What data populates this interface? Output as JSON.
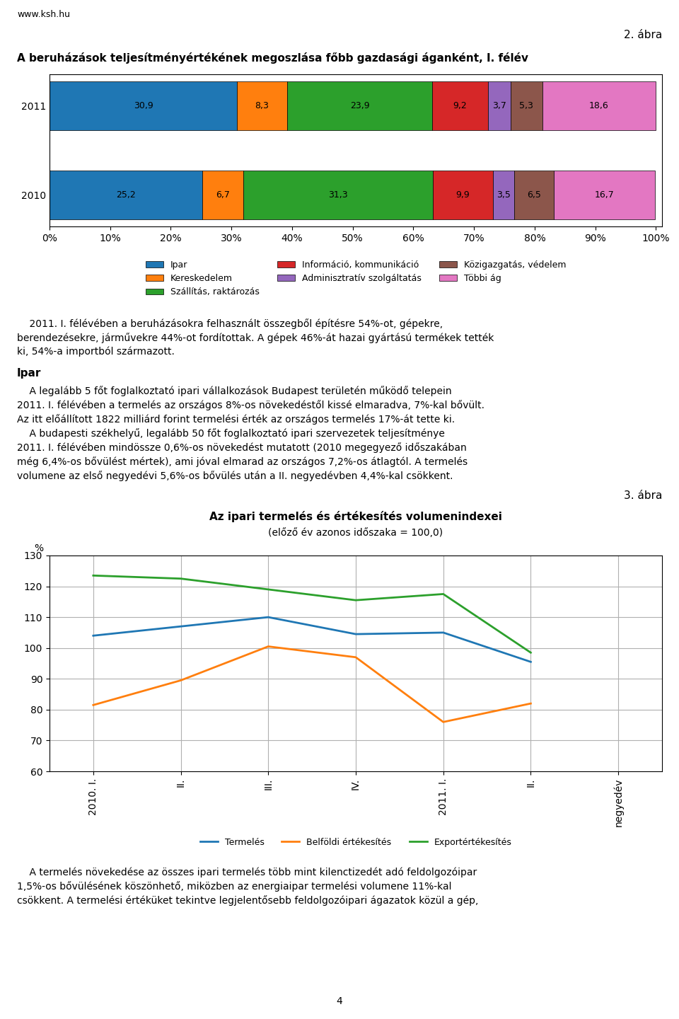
{
  "chart_data": [
    {
      "type": "bar",
      "orientation": "horizontal",
      "stacked": true,
      "title": "A beruházások teljesítményértékének megoszlása főbb gazdasági áganként, I. félév",
      "categories": [
        "2011",
        "2010"
      ],
      "series": [
        {
          "name": "Ipar",
          "values": [
            30.9,
            25.2
          ],
          "value_labels": [
            "30,9",
            "25,2"
          ]
        },
        {
          "name": "Kereskedelem",
          "values": [
            8.3,
            6.7
          ],
          "value_labels": [
            "8,3",
            "6,7"
          ]
        },
        {
          "name": "Szállítás, raktározás",
          "values": [
            23.9,
            31.3
          ],
          "value_labels": [
            "23,9",
            "31,3"
          ]
        },
        {
          "name": "Információ, kommunikáció",
          "values": [
            9.2,
            9.9
          ],
          "value_labels": [
            "9,2",
            "9,9"
          ]
        },
        {
          "name": "Adminisztratív szolgáltatás",
          "values": [
            3.7,
            3.5
          ],
          "value_labels": [
            "3,7",
            "3,5"
          ]
        },
        {
          "name": "Közigazgatás, védelem",
          "values": [
            5.3,
            6.5
          ],
          "value_labels": [
            "5,3",
            "6,5"
          ]
        },
        {
          "name": "Többi ág",
          "values": [
            18.6,
            16.7
          ],
          "value_labels": [
            "18,6",
            "16,7"
          ]
        }
      ],
      "xlim": [
        0,
        101
      ],
      "xticks": [
        {
          "value": 0,
          "label": "0%"
        },
        {
          "value": 10,
          "label": "10%"
        },
        {
          "value": 20,
          "label": "20%"
        },
        {
          "value": 30,
          "label": "30%"
        },
        {
          "value": 40,
          "label": "40%"
        },
        {
          "value": 50,
          "label": "50%"
        },
        {
          "value": 60,
          "label": "60%"
        },
        {
          "value": 70,
          "label": "70%"
        },
        {
          "value": 80,
          "label": "80%"
        },
        {
          "value": 90,
          "label": "90%"
        },
        {
          "value": 100,
          "label": "100%"
        }
      ],
      "grid": false,
      "legend": "upper center",
      "data_labels": true,
      "annotations": [
        "www.ksh.hu",
        "2. ábra",
        "    2011. I. félévében a beruházásokra felhasznált összegből építésre 54%-ot, gépekre,",
        "berendezésekre, járművekre 44%-ot fordítottak. A gépek 46%-át hazai gyártású termékek tették",
        "ki, 54%-a importból származott.",
        "Ipar",
        "    A legalább 5 főt foglalkoztató ipari vállalkozások Budapest területén működő telepein",
        "2011. I. félévében a termelés az országos 8%-os növekedéstől kissé elmaradva, 7%-kal bővült.",
        "Az itt előállított 1822 milliárd forint termelési érték az országos termelés 17%-át tette ki.",
        "    A budapesti székhelyű, legalább 50 főt foglalkoztató ipari szervezetek teljesítménye",
        "2011. I. félévében mindössze 0,6%-os növekedést mutatott (2010 megegyező időszakában",
        "még 6,4%-os bővülést mértek), ami jóval elmarad az országos 7,2%-os átlagtól. A termelés",
        "volumene az első negyedévi 5,6%-os bővülés után a II. negyedévben 4,4%-kal csökkent."
      ]
    },
    {
      "type": "line",
      "title": "Az ipari termelés és értékesítés volumenindexei",
      "subtitle": "(előző év azonos időszaka = 100,0)",
      "ylabel": "%",
      "categories": [
        "2010. I.",
        "II.",
        "III.",
        "IV.",
        "2011. I.",
        "II.",
        "negyedév"
      ],
      "series": [
        {
          "name": "Termelés",
          "values": [
            104.0,
            107.0,
            110.0,
            104.5,
            105.0,
            95.5,
            null
          ]
        },
        {
          "name": "Belföldi értékesítés",
          "values": [
            81.5,
            89.5,
            100.5,
            97.0,
            76.0,
            82.0,
            null
          ]
        },
        {
          "name": "Exportértékesítés",
          "values": [
            123.5,
            122.5,
            119.0,
            115.5,
            117.5,
            98.5,
            null
          ]
        }
      ],
      "ylim": [
        60,
        130
      ],
      "yticks": [
        60,
        70,
        80,
        90,
        100,
        110,
        120,
        130
      ],
      "grid": true,
      "legend": "upper center",
      "annotations": [
        "3. ábra",
        "    A termelés növekedése az összes ipari termelés több mint kilenctizedét adó feldolgozóipar",
        "1,5%-os bővülésének köszönhető, miközben az energiaipar termelési volumene 11%-kal",
        "csökkent. A termelési értéküket tekintve legjelentősebb feldolgozóipari ágazatok közül a gép,",
        "4"
      ]
    }
  ]
}
